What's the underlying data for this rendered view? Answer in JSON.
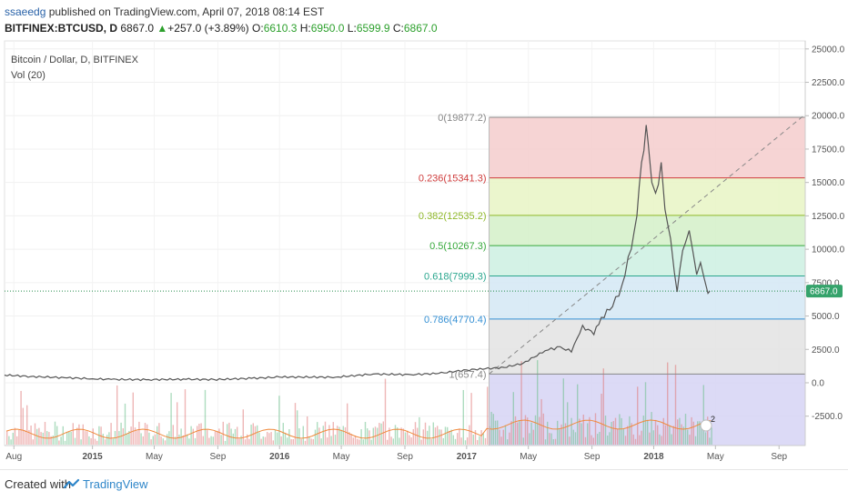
{
  "header": {
    "author": "ssaeedg",
    "published_text": " published on TradingView.com, April 07, 2018 08:14 EST",
    "symbol": "BITFINEX:BTCUSD, D",
    "last": "6867.0",
    "change": "+257.0 (+3.89%)",
    "o_label": "O:",
    "o_value": "6610.3",
    "h_label": "H:",
    "h_value": "6950.0",
    "l_label": "L:",
    "l_value": "6599.9",
    "c_label": "C:",
    "c_value": "6867.0"
  },
  "chart_data": {
    "type": "line",
    "legend": [
      "Bitcoin / Dollar, D, BITFINEX",
      "Vol (20)"
    ],
    "y_ticks": [
      25000,
      22500,
      20000,
      17500,
      15000,
      12500,
      10000,
      7500,
      5000,
      2500,
      0,
      -2500
    ],
    "y_tick_labels": [
      "25000.0",
      "22500.0",
      "20000.0",
      "17500.0",
      "15000.0",
      "12500.0",
      "10000.0",
      "7500.0",
      "5000.0",
      "2500.0",
      "0.0",
      "-2500.0"
    ],
    "ylim": [
      -4700,
      25600
    ],
    "x_ticks": [
      {
        "label": "Aug",
        "t": 2014.58
      },
      {
        "label": "2015",
        "t": 2015.0
      },
      {
        "label": "May",
        "t": 2015.33
      },
      {
        "label": "Sep",
        "t": 2015.67
      },
      {
        "label": "2016",
        "t": 2016.0
      },
      {
        "label": "May",
        "t": 2016.33
      },
      {
        "label": "Sep",
        "t": 2016.67
      },
      {
        "label": "2017",
        "t": 2017.0
      },
      {
        "label": "May",
        "t": 2017.33
      },
      {
        "label": "Sep",
        "t": 2017.67
      },
      {
        "label": "2018",
        "t": 2018.0
      },
      {
        "label": "May",
        "t": 2018.33
      },
      {
        "label": "Sep",
        "t": 2018.67
      }
    ],
    "xlim": [
      2014.53,
      2018.81
    ],
    "last_price_label": "6867.0",
    "last_price": 6867,
    "price_series": {
      "name": "BTCUSD",
      "points": [
        [
          2014.53,
          580
        ],
        [
          2014.67,
          470
        ],
        [
          2014.85,
          380
        ],
        [
          2015.0,
          300
        ],
        [
          2015.1,
          250
        ],
        [
          2015.3,
          235
        ],
        [
          2015.5,
          260
        ],
        [
          2015.65,
          240
        ],
        [
          2015.85,
          330
        ],
        [
          2016.0,
          430
        ],
        [
          2016.3,
          420
        ],
        [
          2016.5,
          650
        ],
        [
          2016.7,
          610
        ],
        [
          2016.85,
          700
        ],
        [
          2017.0,
          960
        ],
        [
          2017.1,
          1050
        ],
        [
          2017.2,
          1150
        ],
        [
          2017.3,
          1450
        ],
        [
          2017.42,
          2400
        ],
        [
          2017.5,
          2700
        ],
        [
          2017.56,
          2300
        ],
        [
          2017.62,
          4300
        ],
        [
          2017.68,
          3600
        ],
        [
          2017.72,
          4900
        ],
        [
          2017.78,
          5700
        ],
        [
          2017.83,
          7300
        ],
        [
          2017.88,
          10000
        ],
        [
          2017.91,
          12500
        ],
        [
          2017.935,
          16500
        ],
        [
          2017.96,
          19300
        ],
        [
          2017.97,
          18000
        ],
        [
          2017.99,
          15000
        ],
        [
          2018.01,
          14200
        ],
        [
          2018.04,
          16500
        ],
        [
          2018.06,
          13000
        ],
        [
          2018.09,
          10800
        ],
        [
          2018.11,
          8300
        ],
        [
          2018.125,
          6800
        ],
        [
          2018.14,
          8500
        ],
        [
          2018.17,
          10500
        ],
        [
          2018.19,
          11400
        ],
        [
          2018.21,
          9800
        ],
        [
          2018.23,
          8100
        ],
        [
          2018.25,
          9000
        ],
        [
          2018.27,
          7800
        ],
        [
          2018.29,
          6700
        ],
        [
          2018.3,
          6867
        ]
      ]
    },
    "trend_line": {
      "from": [
        2017.12,
        657.4
      ],
      "to": [
        2018.81,
        20100
      ]
    },
    "fibonacci": {
      "x_start": 2017.12,
      "levels": [
        {
          "ratio": "0",
          "value": 19877.2,
          "label": "0(19877.2)",
          "color": "#888888"
        },
        {
          "ratio": "0.236",
          "value": 15341.3,
          "label": "0.236(15341.3)",
          "color": "#cf3c3c"
        },
        {
          "ratio": "0.382",
          "value": 12535.2,
          "label": "0.382(12535.2)",
          "color": "#8fb82a"
        },
        {
          "ratio": "0.5",
          "value": 10267.3,
          "label": "0.5(10267.3)",
          "color": "#37a93c"
        },
        {
          "ratio": "0.618",
          "value": 7999.3,
          "label": "0.618(7999.3)",
          "color": "#2aa68e"
        },
        {
          "ratio": "0.786",
          "value": 4770.4,
          "label": "0.786(4770.4)",
          "color": "#3590d4"
        },
        {
          "ratio": "1",
          "value": 657.4,
          "label": "1(657.4)",
          "color": "#888888"
        }
      ],
      "zone_colors": [
        "#f4cccc",
        "#e8f4c4",
        "#d4f0c8",
        "#cdf0e2",
        "#d3e8f4",
        "#e3e3e3",
        "#d6d4f4"
      ],
      "bottom_value": -4700
    },
    "volume_event_badge": "2"
  },
  "footer": {
    "created_with": "Created with",
    "brand": "TradingView"
  }
}
